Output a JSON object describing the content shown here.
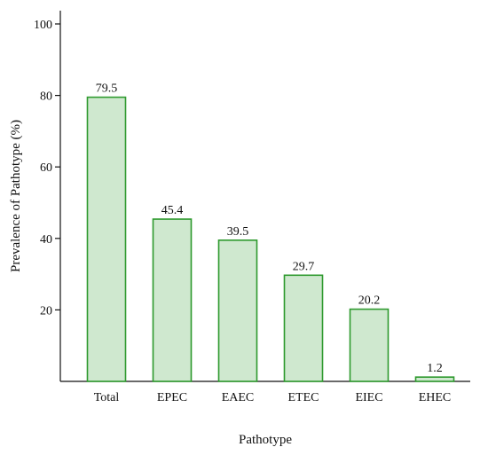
{
  "chart_data": {
    "type": "bar",
    "title": "",
    "xlabel": "Pathotype",
    "ylabel": "Prevalence of Pathotype (%)",
    "categories": [
      "Total",
      "EPEC",
      "EAEC",
      "ETEC",
      "EIEC",
      "EHEC"
    ],
    "values": [
      79.5,
      45.4,
      39.5,
      29.7,
      20.2,
      1.2
    ],
    "data_labels": [
      "79.5",
      "45.4",
      "39.5",
      "29.7",
      "20.2",
      "1.2"
    ],
    "ylim": [
      0,
      100
    ],
    "yticks": [
      20,
      40,
      60,
      80,
      100
    ],
    "ytick_labels": [
      "20",
      "40",
      "60",
      "80",
      "100"
    ],
    "grid": false,
    "legend": "none",
    "bar_fill_color": "#cfe8cf",
    "bar_stroke_color": "#2e9a2e",
    "axis_color": "#111111"
  }
}
